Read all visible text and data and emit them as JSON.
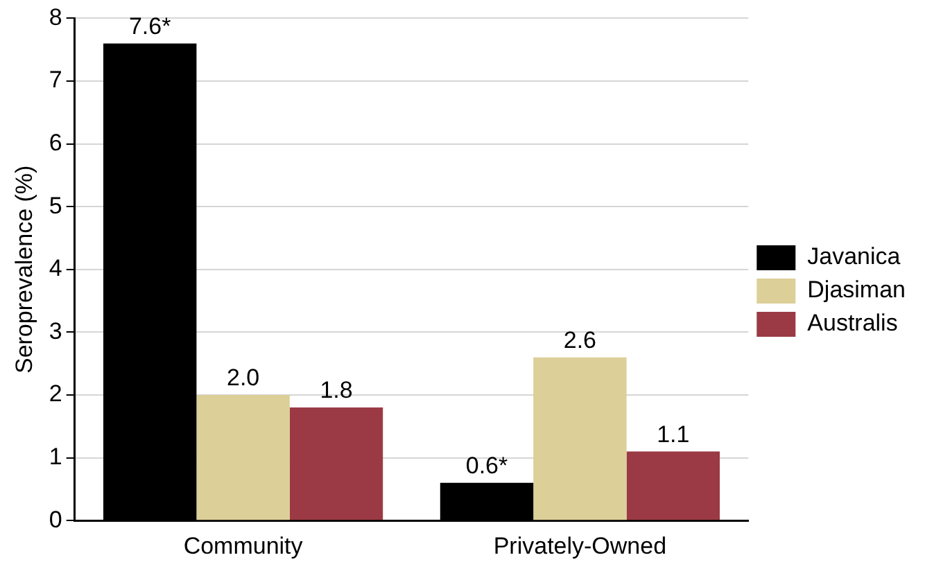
{
  "chart_data": {
    "type": "bar",
    "ylabel": "Seroprevalence (%)",
    "categories": [
      "Community",
      "Privately-Owned"
    ],
    "series": [
      {
        "name": "Javanica",
        "color": "#000000",
        "values": [
          7.6,
          0.6
        ],
        "value_labels": [
          "7.6*",
          "0.6*"
        ]
      },
      {
        "name": "Djasiman",
        "color": "#dccf98",
        "values": [
          2.0,
          2.6
        ],
        "value_labels": [
          "2.0",
          "2.6"
        ]
      },
      {
        "name": "Australis",
        "color": "#9b3a44",
        "values": [
          1.8,
          1.1
        ],
        "value_labels": [
          "1.8",
          "1.1"
        ]
      }
    ],
    "ylim": [
      0,
      8
    ],
    "yticks": [
      0,
      1,
      2,
      3,
      4,
      5,
      6,
      7,
      8
    ],
    "grid": "y",
    "legend": "right"
  }
}
